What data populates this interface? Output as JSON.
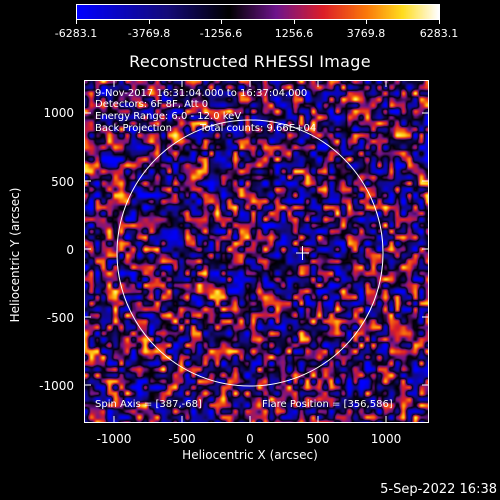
{
  "colorbar": {
    "ticks": [
      "-6283.1",
      "-3769.8",
      "-1256.6",
      "1256.6",
      "3769.8",
      "6283.1"
    ]
  },
  "title": "Reconstructed RHESSI Image",
  "info": {
    "line1": "9-Nov-2017 16:31:04.000 to 16:37:04.000",
    "line2": "Detectors: 6F 8F, Att 0",
    "line3": "Energy Range: 6.0 - 12.0 keV",
    "line4_left": "Back Projection",
    "line4_right": "Total counts: 9.66E+04",
    "spin_axis": "Spin Axis = [387,-68]",
    "flare_position": "Flare Position = [356,586]"
  },
  "axes": {
    "xlabel": "Heliocentric X (arcsec)",
    "ylabel": "Heliocentric Y (arcsec)",
    "xticks": [
      "-1000",
      "-500",
      "0",
      "500",
      "1000"
    ],
    "yticks": [
      "1000",
      "500",
      "0",
      "-500",
      "-1000"
    ]
  },
  "date_stamp": "5-Sep-2022 16:38"
}
